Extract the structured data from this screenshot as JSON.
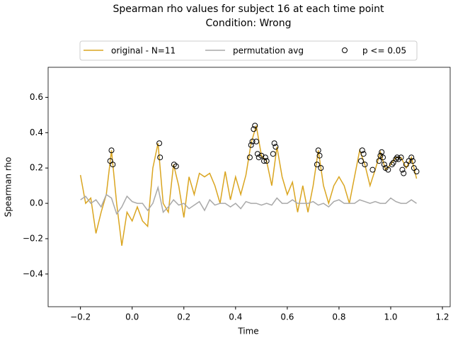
{
  "chart_data": {
    "type": "line",
    "title": "Spearman rho values for subject 16 at each time point",
    "subtitle": "Condition: Wrong",
    "xlabel": "Time",
    "ylabel": "Spearman rho",
    "xlim": [
      -0.325,
      1.23
    ],
    "ylim": [
      -0.585,
      0.77
    ],
    "xticks": [
      {
        "value": -0.2,
        "label": "−0.2"
      },
      {
        "value": 0.0,
        "label": "0.0"
      },
      0.2,
      0.4,
      0.6,
      0.8,
      {
        "value": 1.0,
        "label": "1.0"
      },
      1.2
    ],
    "yticks": [
      {
        "value": -0.4,
        "label": "−0.4"
      },
      {
        "value": -0.2,
        "label": "−0.2"
      },
      {
        "value": 0.0,
        "label": "0.0"
      },
      0.2,
      0.4,
      0.6
    ],
    "legend": "upper center",
    "x": [
      -0.2,
      -0.18,
      -0.16,
      -0.14,
      -0.12,
      -0.1,
      -0.08,
      -0.06,
      -0.04,
      -0.02,
      0.0,
      0.02,
      0.04,
      0.06,
      0.08,
      0.1,
      0.12,
      0.14,
      0.16,
      0.18,
      0.2,
      0.22,
      0.24,
      0.26,
      0.28,
      0.3,
      0.32,
      0.34,
      0.36,
      0.38,
      0.4,
      0.42,
      0.44,
      0.46,
      0.48,
      0.5,
      0.52,
      0.54,
      0.56,
      0.58,
      0.6,
      0.62,
      0.64,
      0.66,
      0.68,
      0.7,
      0.72,
      0.74,
      0.76,
      0.78,
      0.8,
      0.82,
      0.84,
      0.86,
      0.88,
      0.9,
      0.92,
      0.94,
      0.96,
      0.98,
      1.0,
      1.02,
      1.04,
      1.06,
      1.08,
      1.1
    ],
    "series": [
      {
        "name": "original - N=11",
        "color": "#daa520",
        "type": "line",
        "values": [
          0.16,
          0.0,
          0.03,
          -0.17,
          -0.05,
          0.05,
          0.3,
          0.0,
          -0.24,
          -0.05,
          -0.1,
          -0.02,
          -0.1,
          -0.13,
          0.2,
          0.34,
          0.0,
          -0.05,
          0.22,
          0.1,
          -0.08,
          0.15,
          0.05,
          0.17,
          0.15,
          0.17,
          0.1,
          0.0,
          0.18,
          0.02,
          0.15,
          0.05,
          0.16,
          0.34,
          0.44,
          0.27,
          0.24,
          0.1,
          0.32,
          0.15,
          0.05,
          0.12,
          -0.05,
          0.1,
          -0.05,
          0.1,
          0.3,
          0.1,
          0.0,
          0.1,
          0.15,
          0.1,
          0.0,
          0.15,
          0.3,
          0.22,
          0.1,
          0.19,
          0.29,
          0.19,
          0.22,
          0.26,
          0.26,
          0.2,
          0.26,
          0.14
        ]
      },
      {
        "name": "permutation avg",
        "color": "#a9a9a9",
        "type": "line",
        "values": [
          0.02,
          0.04,
          0.0,
          0.02,
          -0.02,
          0.05,
          0.03,
          -0.06,
          -0.02,
          0.04,
          0.01,
          0.0,
          0.0,
          -0.04,
          0.0,
          0.09,
          -0.05,
          -0.02,
          0.02,
          -0.01,
          0.0,
          -0.03,
          -0.01,
          0.01,
          -0.04,
          0.02,
          -0.01,
          0.0,
          0.0,
          -0.02,
          0.0,
          -0.03,
          0.01,
          0.0,
          0.0,
          -0.01,
          0.0,
          -0.01,
          0.03,
          0.0,
          0.0,
          0.02,
          0.0,
          0.0,
          0.0,
          0.01,
          -0.01,
          0.0,
          -0.02,
          0.01,
          0.02,
          0.0,
          0.0,
          0.0,
          0.02,
          0.01,
          0.0,
          0.01,
          0.0,
          0.0,
          0.03,
          0.01,
          0.0,
          0.0,
          0.02,
          0.0
        ]
      },
      {
        "name": "p <= 0.05",
        "color": "#000000",
        "type": "scatter",
        "x": [
          -0.085,
          -0.08,
          -0.075,
          0.105,
          0.108,
          0.162,
          0.17,
          0.455,
          0.46,
          0.465,
          0.47,
          0.475,
          0.48,
          0.485,
          0.49,
          0.5,
          0.51,
          0.515,
          0.52,
          0.545,
          0.55,
          0.555,
          0.715,
          0.72,
          0.725,
          0.73,
          0.885,
          0.89,
          0.895,
          0.9,
          0.93,
          0.955,
          0.96,
          0.965,
          0.97,
          0.975,
          0.98,
          0.99,
          1.005,
          1.01,
          1.02,
          1.025,
          1.03,
          1.04,
          1.045,
          1.05,
          1.06,
          1.07,
          1.08,
          1.085,
          1.09,
          1.1
        ],
        "values": [
          0.24,
          0.3,
          0.22,
          0.34,
          0.26,
          0.22,
          0.21,
          0.26,
          0.33,
          0.35,
          0.42,
          0.44,
          0.35,
          0.28,
          0.26,
          0.27,
          0.24,
          0.26,
          0.24,
          0.28,
          0.34,
          0.32,
          0.22,
          0.3,
          0.27,
          0.2,
          0.24,
          0.3,
          0.28,
          0.22,
          0.19,
          0.24,
          0.27,
          0.29,
          0.26,
          0.22,
          0.2,
          0.19,
          0.22,
          0.23,
          0.25,
          0.26,
          0.25,
          0.26,
          0.19,
          0.17,
          0.22,
          0.24,
          0.26,
          0.24,
          0.2,
          0.18
        ]
      }
    ]
  }
}
